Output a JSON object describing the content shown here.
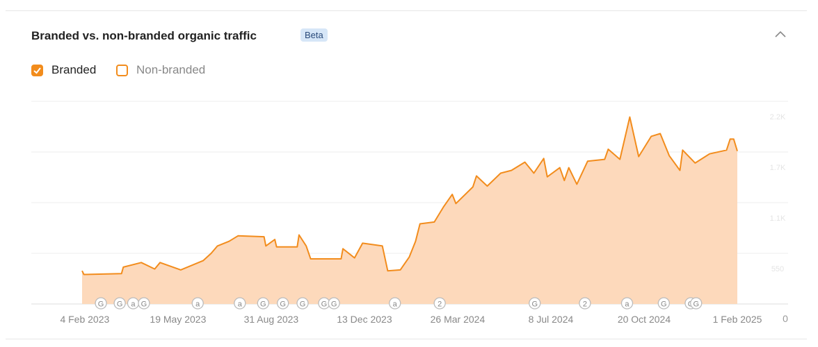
{
  "chart_data": {
    "type": "area",
    "title": "Branded vs. non-branded organic traffic",
    "badge": "Beta",
    "x": [
      "2023-02-01",
      "2023-02-03",
      "2023-03-17",
      "2023-03-19",
      "2023-04-08",
      "2023-04-23",
      "2023-04-29",
      "2023-05-22",
      "2023-06-16",
      "2023-06-25",
      "2023-07-02",
      "2023-07-15",
      "2023-07-25",
      "2023-08-23",
      "2023-08-25",
      "2023-09-04",
      "2023-09-06",
      "2023-09-29",
      "2023-10-01",
      "2023-10-09",
      "2023-10-14",
      "2023-11-17",
      "2023-11-19",
      "2023-12-02",
      "2023-12-11",
      "2024-01-02",
      "2024-01-08",
      "2024-01-22",
      "2024-02-01",
      "2024-02-08",
      "2024-02-13",
      "2024-02-29",
      "2024-03-10",
      "2024-03-20",
      "2024-03-24",
      "2024-04-12",
      "2024-04-16",
      "2024-04-28",
      "2024-05-13",
      "2024-05-25",
      "2024-06-09",
      "2024-06-19",
      "2024-06-30",
      "2024-07-04",
      "2024-07-18",
      "2024-07-23",
      "2024-07-28",
      "2024-08-06",
      "2024-08-18",
      "2024-09-06",
      "2024-09-10",
      "2024-09-23",
      "2024-10-04",
      "2024-10-14",
      "2024-10-28",
      "2024-11-07",
      "2024-11-17",
      "2024-11-29",
      "2024-12-02",
      "2024-12-16",
      "2025-01-01",
      "2025-01-20",
      "2025-01-24",
      "2025-01-28",
      "2025-02-01"
    ],
    "series": [
      {
        "name": "Branded",
        "color": "#f28c1c",
        "fill": "#fdd9bb",
        "visible": true,
        "values": [
          360,
          320,
          330,
          400,
          450,
          380,
          450,
          370,
          470,
          550,
          630,
          680,
          740,
          730,
          630,
          700,
          620,
          620,
          750,
          630,
          490,
          490,
          600,
          500,
          660,
          630,
          360,
          370,
          510,
          680,
          870,
          890,
          1050,
          1190,
          1090,
          1270,
          1390,
          1280,
          1420,
          1450,
          1540,
          1420,
          1580,
          1380,
          1480,
          1340,
          1480,
          1300,
          1550,
          1570,
          1680,
          1570,
          2030,
          1600,
          1820,
          1850,
          1610,
          1450,
          1670,
          1530,
          1630,
          1670,
          1790,
          1790,
          1660
        ]
      },
      {
        "name": "Non-branded",
        "color": "#f28c1c",
        "visible": false,
        "values": [
          null,
          null,
          null,
          null,
          null,
          null,
          null,
          null,
          null,
          null,
          null,
          null,
          null,
          null,
          null,
          null,
          null,
          null,
          null,
          null,
          null,
          null,
          null,
          null,
          null,
          null,
          null,
          null,
          null,
          null,
          null,
          null,
          null,
          null,
          null,
          null,
          null,
          null,
          null,
          null,
          null,
          null,
          null,
          null,
          null,
          null,
          null,
          null,
          null,
          null,
          null,
          null,
          null,
          null,
          null,
          null,
          null,
          null,
          null,
          null,
          null,
          null,
          null,
          null,
          null
        ]
      }
    ],
    "xlim": [
      "2023-02-01",
      "2025-02-01"
    ],
    "xticks": [
      {
        "value": "2023-02-04",
        "label": "4 Feb 2023"
      },
      {
        "value": "2023-05-19",
        "label": "19 May 2023"
      },
      {
        "value": "2023-08-31",
        "label": "31 Aug 2023"
      },
      {
        "value": "2023-12-13",
        "label": "13 Dec 2023"
      },
      {
        "value": "2024-03-26",
        "label": "26 Mar 2024"
      },
      {
        "value": "2024-07-08",
        "label": "8 Jul 2024"
      },
      {
        "value": "2024-10-20",
        "label": "20 Oct 2024"
      },
      {
        "value": "2025-02-01",
        "label": "1 Feb 2025"
      }
    ],
    "ylim": [
      0,
      2200
    ],
    "yticks": [
      0,
      550,
      {
        "value": 1100,
        "label": "1.1K"
      },
      {
        "value": 1650,
        "label": "1.7K"
      },
      {
        "value": 2200,
        "label": "2.2K"
      }
    ],
    "grid": true,
    "events": [
      {
        "x": "2023-02-22",
        "label": "G"
      },
      {
        "x": "2023-03-15",
        "label": "G"
      },
      {
        "x": "2023-03-30",
        "label": "a"
      },
      {
        "x": "2023-04-11",
        "label": "G"
      },
      {
        "x": "2023-06-10",
        "label": "a"
      },
      {
        "x": "2023-07-27",
        "label": "a"
      },
      {
        "x": "2023-08-22",
        "label": "G"
      },
      {
        "x": "2023-09-13",
        "label": "G"
      },
      {
        "x": "2023-10-05",
        "label": "G"
      },
      {
        "x": "2023-10-29",
        "label": "G"
      },
      {
        "x": "2023-11-09",
        "label": "G"
      },
      {
        "x": "2024-01-16",
        "label": "a"
      },
      {
        "x": "2024-03-06",
        "label": "2"
      },
      {
        "x": "2024-06-20",
        "label": "G"
      },
      {
        "x": "2024-08-15",
        "label": "2"
      },
      {
        "x": "2024-10-01",
        "label": "a"
      },
      {
        "x": "2024-11-11",
        "label": "G"
      },
      {
        "x": "2024-12-11",
        "label": "G"
      },
      {
        "x": "2024-12-17",
        "label": "G"
      }
    ]
  }
}
